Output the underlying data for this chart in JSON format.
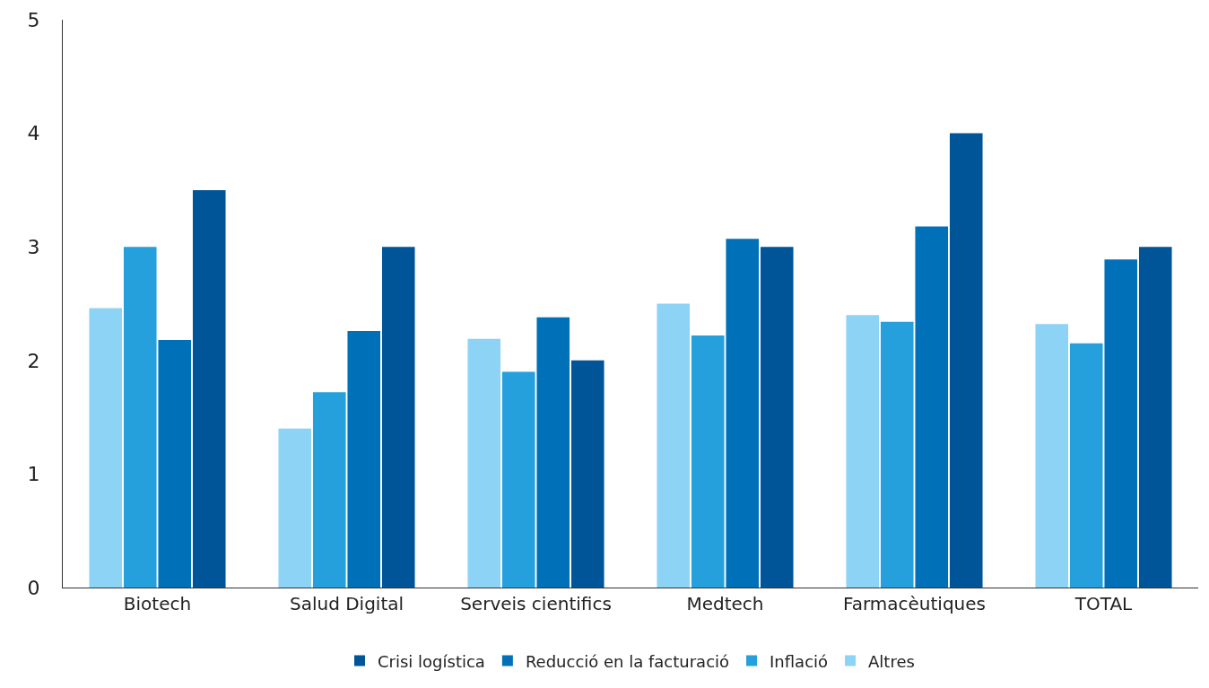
{
  "chart_data": {
    "type": "bar",
    "categories": [
      "Biotech",
      "Salud Digital",
      "Serveis cientifics",
      "Medtech",
      "Farmacèutiques",
      "TOTAL"
    ],
    "series": [
      {
        "name": "Crisi logística",
        "color": "#005599",
        "values": [
          3.5,
          3.0,
          2.0,
          3.0,
          4.0,
          3.0
        ]
      },
      {
        "name": "Reducció en la facturació",
        "color": "#0070b8",
        "values": [
          2.18,
          2.26,
          2.38,
          3.07,
          3.18,
          2.89
        ]
      },
      {
        "name": "Inflació",
        "color": "#25a0dd",
        "values": [
          3.0,
          1.72,
          1.9,
          2.22,
          2.34,
          2.15
        ]
      },
      {
        "name": "Altres",
        "color": "#8dd3f5",
        "values": [
          2.46,
          1.4,
          2.19,
          2.5,
          2.4,
          2.32
        ]
      }
    ],
    "ylim": [
      0,
      5
    ],
    "yticks": [
      0,
      1,
      2,
      3,
      4,
      5
    ],
    "grid": false,
    "legend": "bottom"
  }
}
